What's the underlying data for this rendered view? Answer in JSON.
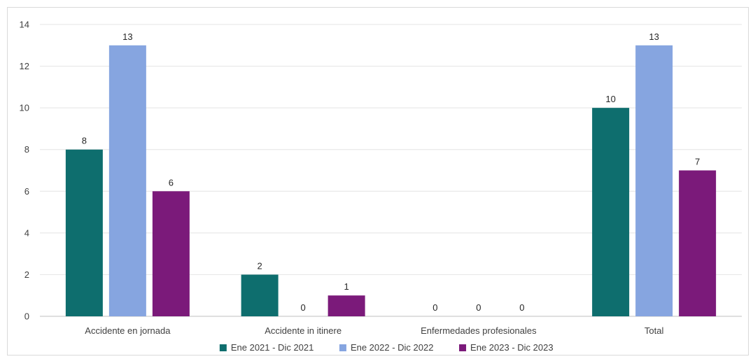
{
  "chart_data": {
    "type": "bar",
    "title": "",
    "xlabel": "",
    "ylabel": "",
    "categories": [
      "Accidente en jornada",
      "Accidente in itinere",
      "Enfermedades profesionales",
      "Total"
    ],
    "series": [
      {
        "name": "Ene 2021 - Dic 2021",
        "color": "#0e6e6e",
        "values": [
          8,
          2,
          0,
          10
        ]
      },
      {
        "name": "Ene 2022 - Dic 2022",
        "color": "#86a5e0",
        "values": [
          13,
          0,
          0,
          13
        ]
      },
      {
        "name": "Ene 2023 - Dic 2023",
        "color": "#7b1a7a",
        "values": [
          6,
          1,
          0,
          7
        ]
      }
    ],
    "ylim": [
      0,
      14
    ],
    "yticks": [
      0,
      2,
      4,
      6,
      8,
      10,
      12,
      14
    ],
    "grid": true,
    "legend": "bottom"
  }
}
